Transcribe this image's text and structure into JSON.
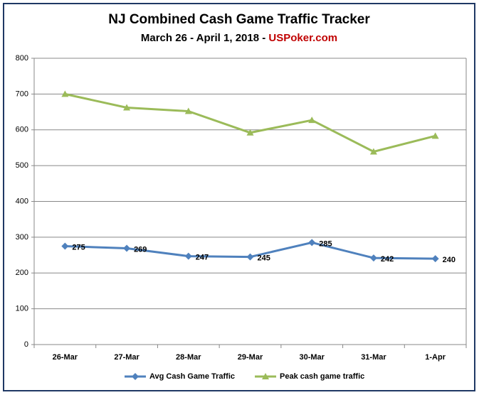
{
  "chart_data": {
    "type": "line",
    "title": "NJ Combined Cash Game Traffic Tracker",
    "subtitle": {
      "text": "March 26 - April 1, 2018 -",
      "source": "USPoker.com"
    },
    "categories": [
      "26-Mar",
      "27-Mar",
      "28-Mar",
      "29-Mar",
      "30-Mar",
      "31-Mar",
      "1-Apr"
    ],
    "series": [
      {
        "name": "Avg Cash Game Traffic",
        "color": "#4f81bd",
        "marker": "diamond",
        "data_labels": true,
        "values": [
          275,
          269,
          247,
          245,
          285,
          242,
          240
        ]
      },
      {
        "name": "Peak cash game traffic",
        "color": "#9bbb59",
        "marker": "triangle",
        "data_labels": false,
        "values": [
          700,
          662,
          652,
          592,
          627,
          539,
          583
        ]
      }
    ],
    "ylim": [
      0,
      800
    ],
    "yticks": [
      0,
      100,
      200,
      300,
      400,
      500,
      600,
      700,
      800
    ],
    "grid": true,
    "legend": "bottom"
  }
}
